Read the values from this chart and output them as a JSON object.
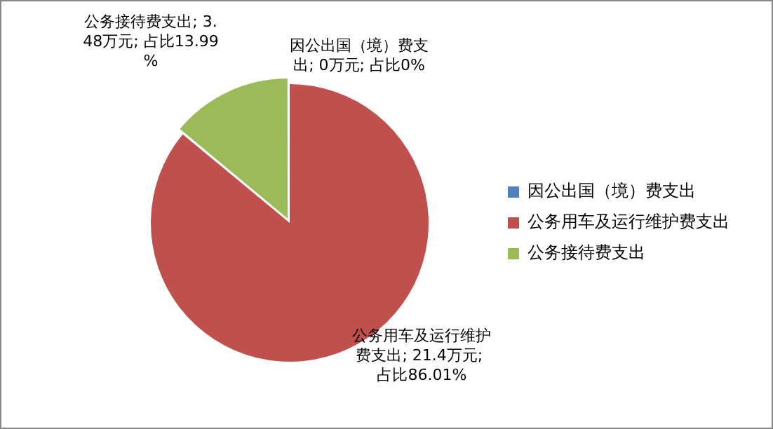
{
  "chart_data": {
    "type": "pie",
    "categories": [
      "因公出国（境）费支出",
      "公务用车及运行维护费支出",
      "公务接待费支出"
    ],
    "values": [
      0,
      21.4,
      3.48
    ],
    "colors": [
      "#4f81bd",
      "#c0504d",
      "#9bbb59"
    ],
    "value_labels": [
      "因公出国（境）费支出; 0万元; 占比0%",
      "公务用车及运行维护费支出; 21.4万元; 占比86.01%",
      "公务接待费支出; 3.48万元; 占比13.99%"
    ],
    "legend": "right"
  }
}
